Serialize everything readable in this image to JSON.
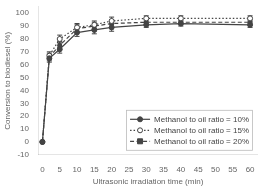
{
  "chart_data": {
    "type": "line",
    "x": [
      0,
      2,
      5,
      10,
      15,
      20,
      30,
      40,
      60
    ],
    "series": [
      {
        "name": "Methanol to oil ratio = 10%",
        "color": "#444444",
        "marker": "circle",
        "line_style": "solid",
        "values": [
          0,
          65,
          72,
          85,
          87,
          89,
          91,
          92,
          91
        ],
        "errors": [
          0.5,
          3,
          3,
          3,
          3,
          3,
          2,
          2,
          2
        ]
      },
      {
        "name": "Methanol to oil ratio = 15%",
        "color": "#444444",
        "marker": "open_circle",
        "line_style": "dotted",
        "values": [
          0,
          67,
          80,
          89,
          91,
          94,
          96,
          96,
          96
        ],
        "errors": [
          0.5,
          3,
          3,
          3,
          3,
          3,
          2,
          2,
          2
        ]
      },
      {
        "name": "Methanol to oil ratio = 20%",
        "color": "#444444",
        "marker": "square",
        "line_style": "dashed",
        "values": [
          0,
          66,
          75,
          88,
          90,
          92,
          93,
          93,
          93
        ],
        "errors": [
          0.5,
          3,
          3,
          3,
          3,
          3,
          2,
          2,
          2
        ]
      }
    ],
    "xlabel": "Ultrasonic irradiation time (min)",
    "ylabel": "Conversion to biodiesel (%)",
    "xlim": [
      -1,
      62
    ],
    "ylim": [
      -10,
      105
    ],
    "xticks": [
      0,
      5,
      10,
      15,
      20,
      25,
      30,
      35,
      40,
      45,
      50,
      55,
      60
    ],
    "yticks": [
      -10,
      0,
      10,
      20,
      30,
      40,
      50,
      60,
      70,
      80,
      90,
      100
    ],
    "grid": false,
    "legend": "lower right"
  }
}
